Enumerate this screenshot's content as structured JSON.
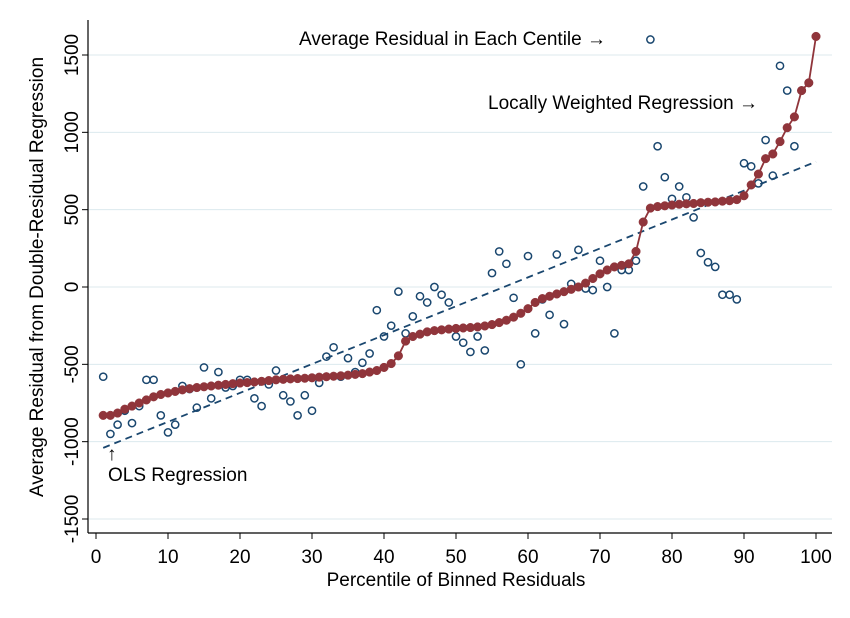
{
  "chart_data": {
    "type": "scatter",
    "title": "",
    "xlabel": "Percentile of Binned Residuals",
    "ylabel": "Average Residual from Double-Residual Regression",
    "xlim": [
      0,
      100
    ],
    "ylim": [
      -1600,
      1700
    ],
    "xticks": [
      "0",
      "10",
      "20",
      "30",
      "40",
      "50",
      "60",
      "70",
      "80",
      "90",
      "100"
    ],
    "yticks": [
      "-1500",
      "-1000",
      "-500",
      "0",
      "500",
      "1000",
      "1500"
    ],
    "grid": true,
    "colors": {
      "scatter": "#1a476f",
      "lowess": "#90353b",
      "ols": "#1a476f",
      "grid": "#dce9ee"
    },
    "annotations": {
      "centile_label": "Average Residual in Each Centile →",
      "lowess_label": "Locally Weighted Regression →",
      "ols_arrow": "↑",
      "ols_label": "OLS Regression"
    },
    "series": [
      {
        "kind": "scatter",
        "x": [
          1,
          2,
          3,
          4,
          5,
          6,
          7,
          8,
          9,
          10,
          11,
          12,
          13,
          14,
          15,
          16,
          17,
          18,
          19,
          20,
          21,
          22,
          23,
          24,
          25,
          26,
          27,
          28,
          29,
          30,
          31,
          32,
          33,
          34,
          35,
          36,
          37,
          38,
          39,
          40,
          41,
          42,
          43,
          44,
          45,
          46,
          47,
          48,
          49,
          50,
          51,
          52,
          53,
          54,
          55,
          56,
          57,
          58,
          59,
          60,
          61,
          62,
          63,
          64,
          65,
          66,
          67,
          68,
          69,
          70,
          71,
          72,
          73,
          74,
          75,
          76,
          77,
          78,
          79,
          80,
          81,
          82,
          83,
          84,
          85,
          86,
          87,
          88,
          89,
          90,
          91,
          92,
          93,
          94,
          95,
          96,
          97,
          98,
          99
        ],
        "y": [
          -580,
          -950,
          -890,
          -800,
          -880,
          -770,
          -600,
          -600,
          -830,
          -940,
          -890,
          -640,
          -660,
          -780,
          -520,
          -720,
          -550,
          -650,
          -640,
          -600,
          -600,
          -720,
          -770,
          -630,
          -540,
          -700,
          -740,
          -830,
          -700,
          -800,
          -620,
          -450,
          -390,
          -580,
          -460,
          -550,
          -490,
          -430,
          -150,
          -320,
          -250,
          -30,
          -300,
          -190,
          -60,
          -100,
          0,
          -50,
          -100,
          -320,
          -360,
          -420,
          -320,
          -410,
          90,
          230,
          150,
          -70,
          -500,
          200,
          -300,
          -80,
          -180,
          210,
          -240,
          20,
          240,
          -10,
          -20,
          170,
          0,
          -300,
          110,
          110,
          170,
          650,
          1600,
          910,
          710,
          570,
          650,
          580,
          450,
          220,
          160,
          130,
          -50,
          -50,
          -80,
          800,
          780,
          670,
          950,
          720,
          1430,
          1270,
          910,
          1270,
          1320
        ]
      },
      {
        "kind": "lowess",
        "x": [
          1,
          2,
          3,
          4,
          5,
          6,
          7,
          8,
          9,
          10,
          11,
          12,
          13,
          14,
          15,
          16,
          17,
          18,
          19,
          20,
          21,
          22,
          23,
          24,
          25,
          26,
          27,
          28,
          29,
          30,
          31,
          32,
          33,
          34,
          35,
          36,
          37,
          38,
          39,
          40,
          41,
          42,
          43,
          44,
          45,
          46,
          47,
          48,
          49,
          50,
          51,
          52,
          53,
          54,
          55,
          56,
          57,
          58,
          59,
          60,
          61,
          62,
          63,
          64,
          65,
          66,
          67,
          68,
          69,
          70,
          71,
          72,
          73,
          74,
          75,
          76,
          77,
          78,
          79,
          80,
          81,
          82,
          83,
          84,
          85,
          86,
          87,
          88,
          89,
          90,
          91,
          92,
          93,
          94,
          95,
          96,
          97,
          98,
          99,
          100
        ],
        "y": [
          -830,
          -830,
          -815,
          -790,
          -770,
          -750,
          -730,
          -710,
          -695,
          -685,
          -675,
          -665,
          -657,
          -650,
          -645,
          -640,
          -635,
          -630,
          -625,
          -621,
          -618,
          -614,
          -610,
          -605,
          -600,
          -597,
          -594,
          -592,
          -590,
          -587,
          -583,
          -580,
          -577,
          -574,
          -570,
          -565,
          -560,
          -550,
          -540,
          -520,
          -495,
          -445,
          -350,
          -320,
          -305,
          -290,
          -282,
          -277,
          -272,
          -268,
          -265,
          -262,
          -258,
          -252,
          -243,
          -230,
          -215,
          -195,
          -170,
          -140,
          -100,
          -75,
          -60,
          -45,
          -30,
          -15,
          0,
          25,
          55,
          85,
          110,
          130,
          140,
          150,
          230,
          420,
          510,
          520,
          525,
          530,
          535,
          538,
          540,
          545,
          548,
          550,
          555,
          558,
          565,
          590,
          660,
          730,
          830,
          860,
          940,
          1030,
          1100,
          1270,
          1320,
          1620
        ]
      },
      {
        "kind": "ols",
        "x": [
          1,
          100
        ],
        "y": [
          -1040,
          810
        ]
      }
    ]
  }
}
